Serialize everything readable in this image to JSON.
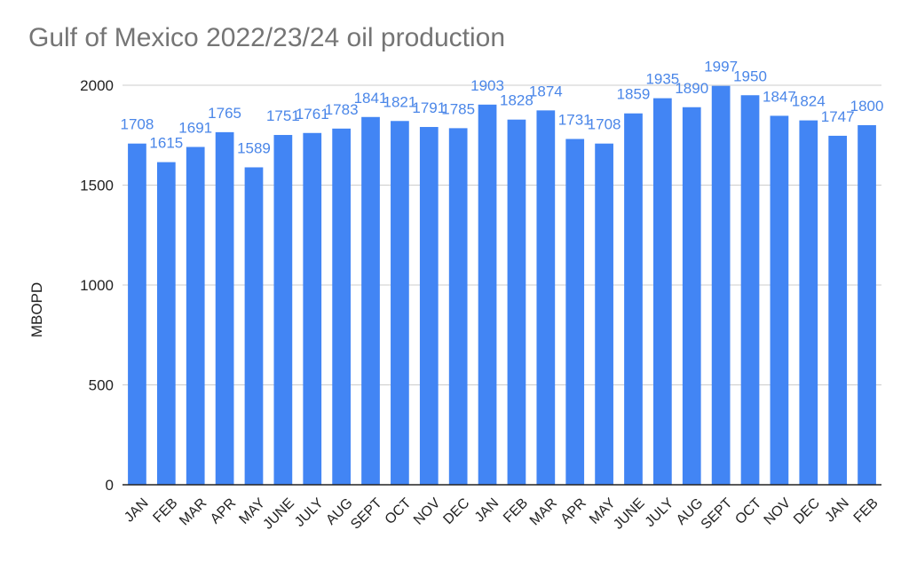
{
  "chart_data": {
    "type": "bar",
    "title": "Gulf of Mexico 2022/23/24 oil production",
    "xlabel": "",
    "ylabel": "MBOPD",
    "ylim": [
      0,
      2000
    ],
    "yticks": [
      0,
      500,
      1000,
      1500,
      2000
    ],
    "grid": true,
    "legend": "none",
    "categories": [
      "JAN",
      "FEB",
      "MAR",
      "APR",
      "MAY",
      "JUNE",
      "JULY",
      "AUG",
      "SEPT",
      "OCT",
      "NOV",
      "DEC",
      "JAN",
      "FEB",
      "MAR",
      "APR",
      "MAY",
      "JUNE",
      "JULY",
      "AUG",
      "SEPT",
      "OCT",
      "NOV",
      "DEC",
      "JAN",
      "FEB"
    ],
    "series": [
      {
        "values": [
          1708,
          1615,
          1691,
          1765,
          1589,
          1751,
          1761,
          1783,
          1841,
          1821,
          1791,
          1785,
          1903,
          1828,
          1874,
          1731,
          1708,
          1859,
          1935,
          1890,
          1997,
          1950,
          1847,
          1824,
          1747,
          1800
        ],
        "color": "#4285f4"
      }
    ],
    "colors": {
      "bar": "#4285f4",
      "data_label": "#4a86e8",
      "grid": "#cccccc",
      "axis": "#222222",
      "title": "#757575"
    }
  }
}
